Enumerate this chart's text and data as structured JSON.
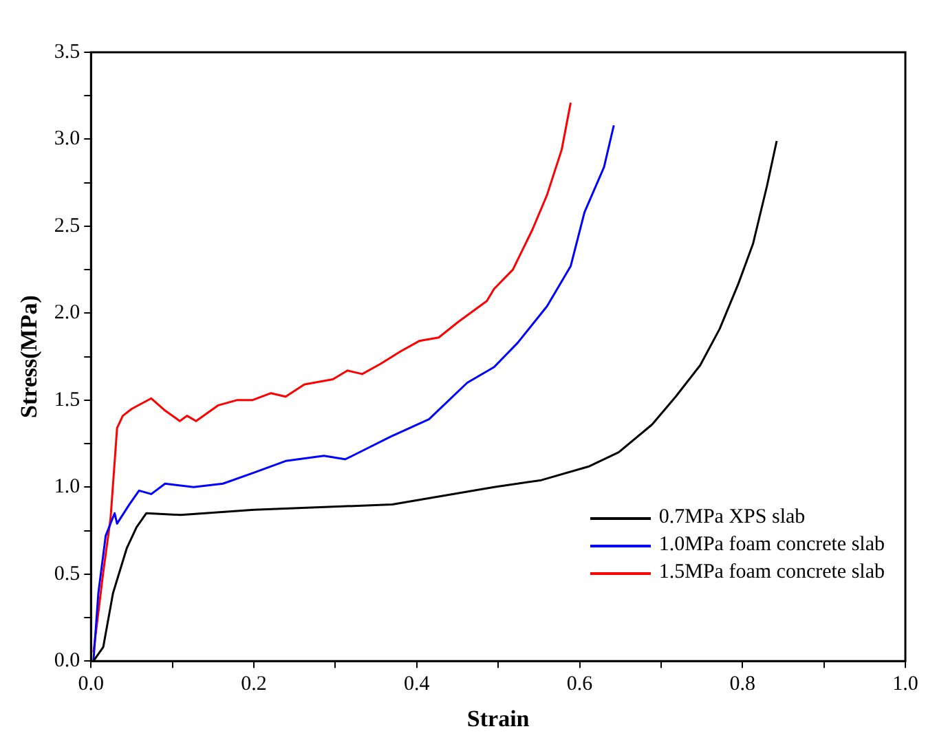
{
  "chart_data": {
    "type": "line",
    "xlabel": "Strain",
    "ylabel": "Stress(MPa)",
    "xlim": [
      0,
      1
    ],
    "ylim": [
      0,
      3.5
    ],
    "xticks": [
      {
        "value": 0,
        "label": "0.0"
      },
      {
        "value": 0.1,
        "label": null
      },
      {
        "value": 0.2,
        "label": "0.2"
      },
      {
        "value": 0.3,
        "label": null
      },
      {
        "value": 0.4,
        "label": "0.4"
      },
      {
        "value": 0.5,
        "label": null
      },
      {
        "value": 0.6,
        "label": "0.6"
      },
      {
        "value": 0.7,
        "label": null
      },
      {
        "value": 0.8,
        "label": "0.8"
      },
      {
        "value": 0.9,
        "label": null
      },
      {
        "value": 1,
        "label": "1.0"
      }
    ],
    "yticks": [
      {
        "value": 0,
        "label": "0.0"
      },
      {
        "value": 0.25,
        "label": null
      },
      {
        "value": 0.5,
        "label": "0.5"
      },
      {
        "value": 0.75,
        "label": null
      },
      {
        "value": 1,
        "label": "1.0"
      },
      {
        "value": 1.25,
        "label": null
      },
      {
        "value": 1.5,
        "label": "1.5"
      },
      {
        "value": 1.75,
        "label": null
      },
      {
        "value": 2,
        "label": "2.0"
      },
      {
        "value": 2.25,
        "label": null
      },
      {
        "value": 2.5,
        "label": "2.5"
      },
      {
        "value": 2.75,
        "label": null
      },
      {
        "value": 3,
        "label": "3.0"
      },
      {
        "value": 3.25,
        "label": null
      },
      {
        "value": 3.5,
        "label": "3.5"
      }
    ],
    "grid": false,
    "legend": "bottom right",
    "marker": "none",
    "line_style": "solid",
    "series": [
      {
        "name": "0.7MPa XPS slab",
        "color": "#000000",
        "x": [
          0.003,
          0.015,
          0.027,
          0.044,
          0.056,
          0.068,
          0.11,
          0.2,
          0.37,
          0.495,
          0.553,
          0.612,
          0.648,
          0.689,
          0.718,
          0.748,
          0.772,
          0.795,
          0.813,
          0.83,
          0.842
        ],
        "values": [
          0,
          0.08,
          0.39,
          0.65,
          0.77,
          0.85,
          0.84,
          0.87,
          0.9,
          1.0,
          1.04,
          1.12,
          1.2,
          1.36,
          1.52,
          1.7,
          1.91,
          2.17,
          2.4,
          2.73,
          2.99
        ]
      },
      {
        "name": "1.0MPa foam concrete slab",
        "color": "#0000ff",
        "x": [
          0.003,
          0.009,
          0.018,
          0.029,
          0.032,
          0.047,
          0.059,
          0.074,
          0.091,
          0.126,
          0.162,
          0.198,
          0.239,
          0.286,
          0.312,
          0.321,
          0.368,
          0.415,
          0.462,
          0.495,
          0.524,
          0.56,
          0.589,
          0.606,
          0.63,
          0.642
        ],
        "values": [
          0,
          0.39,
          0.72,
          0.85,
          0.79,
          0.9,
          0.98,
          0.96,
          1.02,
          1.0,
          1.02,
          1.08,
          1.15,
          1.18,
          1.16,
          1.18,
          1.29,
          1.39,
          1.6,
          1.69,
          1.83,
          2.04,
          2.27,
          2.58,
          2.84,
          3.08
        ]
      },
      {
        "name": "1.5MPa foam concrete slab",
        "color": "#ff0000",
        "x": [
          0.003,
          0.015,
          0.024,
          0.032,
          0.039,
          0.05,
          0.074,
          0.091,
          0.109,
          0.118,
          0.129,
          0.156,
          0.179,
          0.198,
          0.221,
          0.239,
          0.262,
          0.297,
          0.315,
          0.333,
          0.356,
          0.38,
          0.403,
          0.427,
          0.451,
          0.486,
          0.495,
          0.518,
          0.542,
          0.56,
          0.578,
          0.589
        ],
        "values": [
          0.05,
          0.51,
          0.82,
          1.34,
          1.41,
          1.45,
          1.51,
          1.44,
          1.38,
          1.41,
          1.38,
          1.47,
          1.5,
          1.5,
          1.54,
          1.52,
          1.59,
          1.62,
          1.67,
          1.65,
          1.71,
          1.78,
          1.84,
          1.86,
          1.95,
          2.07,
          2.14,
          2.25,
          2.48,
          2.68,
          2.94,
          3.21
        ]
      }
    ]
  }
}
